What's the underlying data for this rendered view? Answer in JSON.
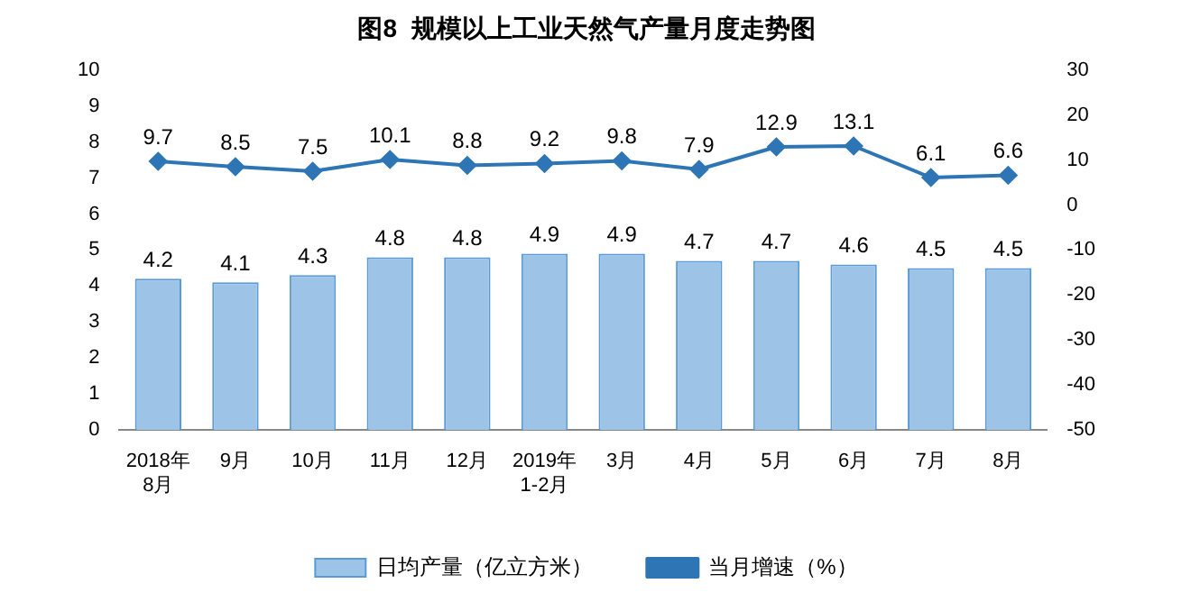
{
  "chart_data": {
    "type": "bar",
    "title": "图8  规模以上工业天然气产量月度走势图",
    "categories": [
      "2018年\n8月",
      "9月",
      "10月",
      "11月",
      "12月",
      "2019年\n1-2月",
      "3月",
      "4月",
      "5月",
      "6月",
      "7月",
      "8月"
    ],
    "series": [
      {
        "name": "日均产量（亿立方米）",
        "color": "#9dc3e6",
        "values": [
          4.2,
          4.1,
          4.3,
          4.8,
          4.8,
          4.9,
          4.9,
          4.7,
          4.7,
          4.6,
          4.5,
          4.5
        ]
      },
      {
        "name": "当月增速（%）",
        "type": "line",
        "axis": "y2",
        "color": "#2e75b6",
        "marker": "diamond",
        "values": [
          9.7,
          8.5,
          7.5,
          10.1,
          8.8,
          9.2,
          9.8,
          7.9,
          12.9,
          13.1,
          6.1,
          6.6
        ]
      }
    ],
    "ylim": [
      0,
      10
    ],
    "yticks": [
      0,
      1,
      2,
      3,
      4,
      5,
      6,
      7,
      8,
      9,
      10
    ],
    "y2lim": [
      -50,
      30
    ],
    "y2ticks": [
      -50,
      -40,
      -30,
      -20,
      -10,
      0,
      10,
      20,
      30
    ],
    "grid": false,
    "legend": "bottom",
    "data_labels": true
  }
}
